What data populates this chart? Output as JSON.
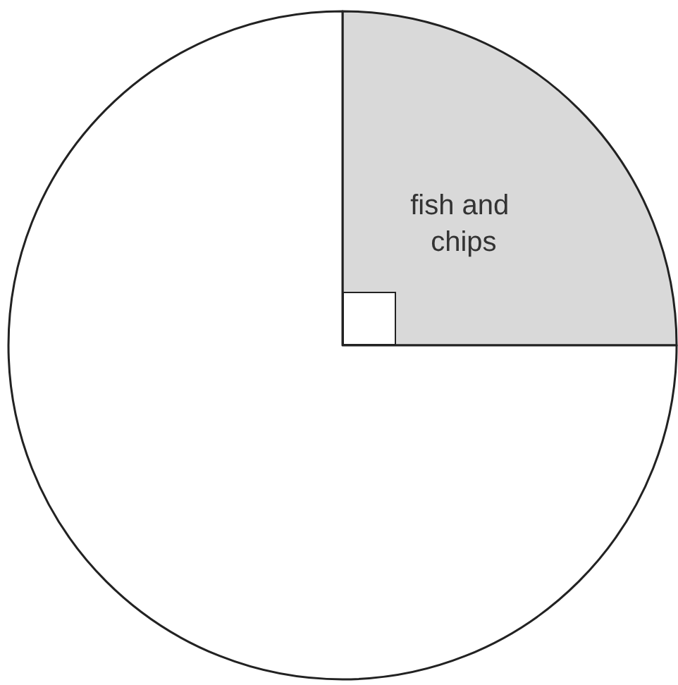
{
  "chart_data": {
    "type": "pie",
    "categories": [
      "fish and chips",
      null
    ],
    "values": [
      25,
      75
    ],
    "colors": [
      "#d9d9d9",
      "#ffffff"
    ]
  }
}
